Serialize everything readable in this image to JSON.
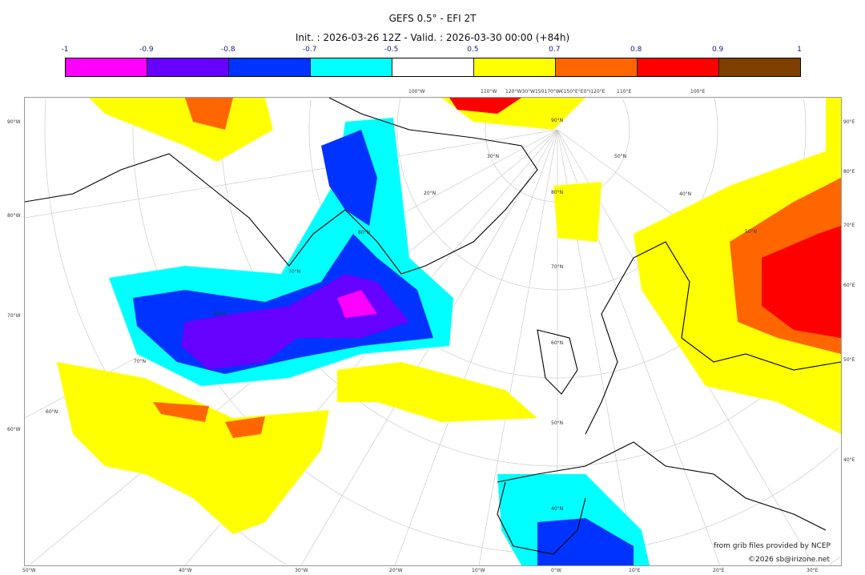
{
  "title": "GEFS 0.5° - EFI 2T",
  "subtitle": "Init. : 2026-03-26 12Z - Valid. : 2026-03-30 00:00 (+84h)",
  "colorbar": {
    "ticks": [
      "-1",
      "-0.9",
      "-0.8",
      "-0.7",
      "-0.5",
      "0.5",
      "0.7",
      "0.8",
      "0.9",
      "1"
    ],
    "colors": [
      "#ff00ff",
      "#6600ff",
      "#0033ff",
      "#00ffff",
      "#ffffff",
      "#ffff00",
      "#ff6600",
      "#ff0000",
      "#7f3f00"
    ]
  },
  "axes": {
    "bottom": [
      "50°W",
      "40°W",
      "30°W",
      "20°W",
      "10°W",
      "0°W",
      "10°E",
      "20°E",
      "30°E"
    ],
    "left": [
      "90°W",
      "80°W",
      "70°W",
      "60°W"
    ],
    "right": [
      "90°E",
      "80°E",
      "70°E",
      "60°E",
      "50°E",
      "40°E"
    ],
    "top": [
      "100°W",
      "110°W",
      "120°W30°W150170°W€150°E°E0°I120°E",
      "110°E",
      "100°E"
    ],
    "lat_labels": [
      "90°N",
      "80°N",
      "70°N",
      "60°N",
      "50°N",
      "40°N",
      "30°N",
      "20°N",
      "80°N",
      "70°N",
      "60°N",
      "70°N",
      "60°N",
      "50°N",
      "40°N",
      "50°N"
    ]
  },
  "credits": {
    "source": "from grib files provided by NCEP",
    "copyright": "©2026 sb@irizone.net"
  }
}
